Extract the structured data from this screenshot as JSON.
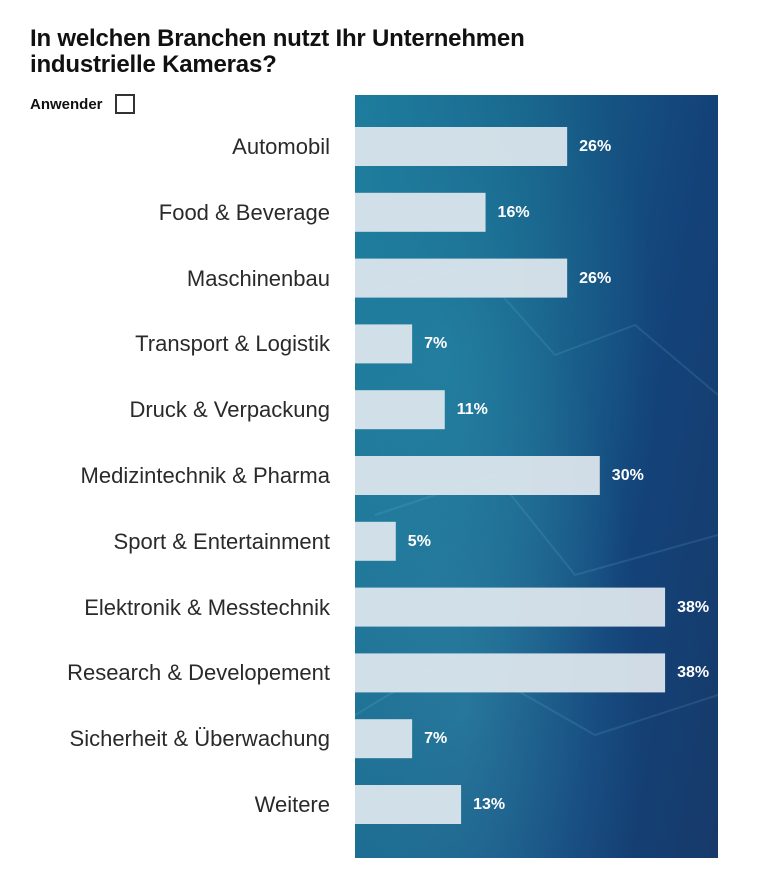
{
  "chart_data": {
    "type": "bar",
    "orientation": "horizontal",
    "title": "In welchen Branchen nutzt Ihr Unternehmen industrielle Kameras?",
    "title_lines": [
      "In welchen Branchen nutzt Ihr Unternehmen",
      "industrielle Kameras?"
    ],
    "legend": {
      "label": "Anwender",
      "placement": "top-left"
    },
    "categories": [
      "Automobil",
      "Food & Beverage",
      "Maschinenbau",
      "Transport & Logistik",
      "Druck & Verpackung",
      "Medizintechnik & Pharma",
      "Sport & Entertainment",
      "Elektronik & Messtechnik",
      "Research & Developement",
      "Sicherheit & Überwachung",
      "Weitere"
    ],
    "values": [
      26,
      16,
      26,
      7,
      11,
      30,
      5,
      38,
      38,
      7,
      13
    ],
    "value_labels": [
      "26%",
      "16%",
      "26%",
      "7%",
      "11%",
      "30%",
      "5%",
      "38%",
      "38%",
      "7%",
      "13%"
    ],
    "unit": "%",
    "xlim": [
      0,
      44
    ],
    "bar_color": "#dfe7ee",
    "background_color": "#17628a"
  }
}
